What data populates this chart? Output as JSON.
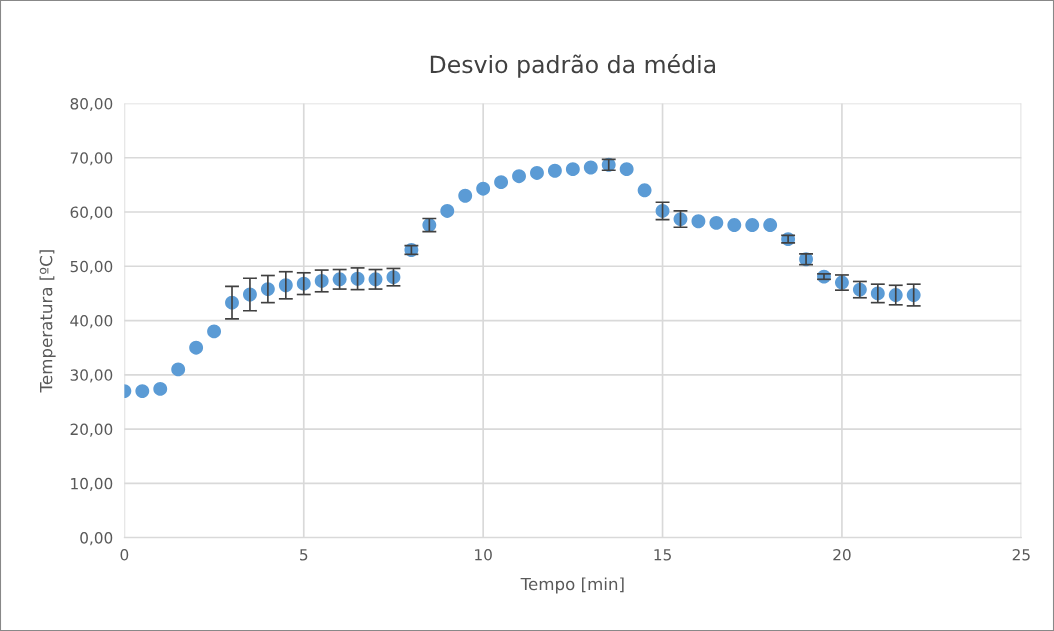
{
  "chart_data": {
    "type": "scatter",
    "title": "Desvio padrão da média",
    "xlabel": "Tempo [min]",
    "ylabel": "Temperatura [ºC]",
    "x": [
      0,
      0.5,
      1,
      1.5,
      2,
      2.5,
      3,
      3.5,
      4,
      4.5,
      5,
      5.5,
      6,
      6.5,
      7,
      7.5,
      8,
      8.5,
      9,
      9.5,
      10,
      10.5,
      11,
      11.5,
      12,
      12.5,
      13,
      13.5,
      14,
      14.5,
      15,
      15.5,
      16,
      16.5,
      17,
      17.5,
      18,
      18.5,
      19,
      19.5,
      20,
      20.5,
      21,
      21.5,
      22
    ],
    "series": [
      {
        "color": "#5b9bd5",
        "values": [
          27.0,
          27.0,
          27.4,
          31.0,
          35.0,
          38.0,
          43.3,
          44.8,
          45.8,
          46.5,
          46.8,
          47.3,
          47.6,
          47.7,
          47.6,
          48.0,
          53.0,
          57.6,
          60.2,
          63.0,
          64.3,
          65.5,
          66.6,
          67.2,
          67.6,
          67.9,
          68.2,
          68.7,
          67.9,
          64.0,
          60.2,
          58.7,
          58.3,
          58.0,
          57.6,
          57.6,
          57.6,
          55.0,
          51.3,
          48.1,
          47.0,
          45.7,
          45.0,
          44.7,
          44.7
        ],
        "errors": [
          null,
          null,
          null,
          null,
          null,
          null,
          3.0,
          3.0,
          2.5,
          2.5,
          2.0,
          2.0,
          1.8,
          2.0,
          1.8,
          1.6,
          0.8,
          1.2,
          null,
          null,
          null,
          null,
          null,
          null,
          null,
          null,
          null,
          1.0,
          null,
          null,
          1.6,
          1.5,
          null,
          null,
          null,
          null,
          null,
          0.7,
          1.0,
          0.5,
          1.4,
          1.5,
          1.7,
          1.8,
          2.0
        ]
      }
    ],
    "xlim": [
      0,
      25
    ],
    "xticks": [
      0,
      5,
      10,
      15,
      20,
      25
    ],
    "ylim": [
      0,
      80
    ],
    "yticks": [
      {
        "value": 0,
        "label": "0,00"
      },
      {
        "value": 10,
        "label": "10,00"
      },
      {
        "value": 20,
        "label": "20,00"
      },
      {
        "value": 30,
        "label": "30,00"
      },
      {
        "value": 40,
        "label": "40,00"
      },
      {
        "value": 50,
        "label": "50,00"
      },
      {
        "value": 60,
        "label": "60,00"
      },
      {
        "value": 70,
        "label": "70,00"
      },
      {
        "value": 80,
        "label": "80,00"
      }
    ],
    "grid": true,
    "marker": "circle"
  }
}
